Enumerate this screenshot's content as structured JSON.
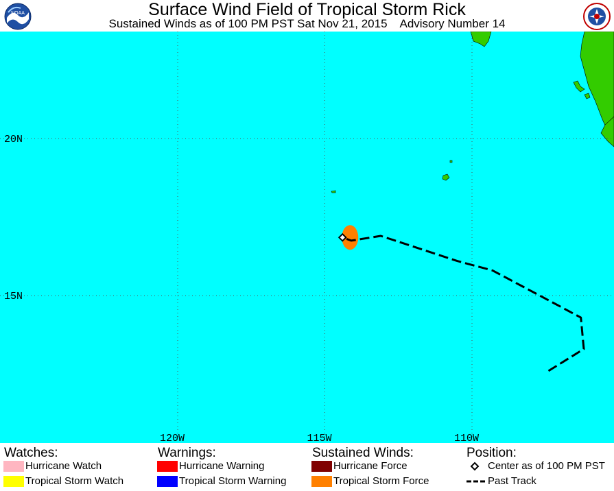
{
  "header": {
    "title": "Surface Wind Field of Tropical Storm Rick",
    "subtitle": "Sustained Winds as of 100 PM PST Sat Nov 21, 2015    Advisory Number 14",
    "logo_left_text": "NOAA",
    "logo_right_text": "NATIONAL WEATHER SERVICE"
  },
  "map": {
    "ocean_color": "#00ffff",
    "land_color": "#33cc00",
    "latitude_labels": [
      "20N",
      "15N"
    ],
    "longitude_labels": [
      "120W",
      "115W",
      "110W"
    ],
    "center": {
      "lon": -114.4,
      "lat": 16.85
    },
    "wind_field_color": "#ff8000",
    "past_track": [
      {
        "lon": -107.4,
        "lat": 12.6
      },
      {
        "lon": -106.2,
        "lat": 13.3
      },
      {
        "lon": -106.3,
        "lat": 14.3
      },
      {
        "lon": -107.7,
        "lat": 15.0
      },
      {
        "lon": -109.3,
        "lat": 15.8
      },
      {
        "lon": -110.5,
        "lat": 16.1
      },
      {
        "lon": -111.8,
        "lat": 16.5
      },
      {
        "lon": -113.1,
        "lat": 16.9
      },
      {
        "lon": -114.1,
        "lat": 16.75
      },
      {
        "lon": -114.4,
        "lat": 16.85
      }
    ]
  },
  "legend": {
    "watches": {
      "heading": "Watches:",
      "items": [
        {
          "label": "Hurricane Watch",
          "color": "#ffb6c1"
        },
        {
          "label": "Tropical Storm Watch",
          "color": "#ffff00"
        }
      ]
    },
    "warnings": {
      "heading": "Warnings:",
      "items": [
        {
          "label": "Hurricane Warning",
          "color": "#ff0000"
        },
        {
          "label": "Tropical Storm Warning",
          "color": "#0000ff"
        }
      ]
    },
    "sustained_winds": {
      "heading": "Sustained Winds:",
      "items": [
        {
          "label": "Hurricane Force",
          "color": "#800000"
        },
        {
          "label": "Tropical Storm Force",
          "color": "#ff8000"
        }
      ]
    },
    "position": {
      "heading": "Position:",
      "center_label": "Center as of 100 PM PST",
      "track_label": "Past Track"
    }
  }
}
